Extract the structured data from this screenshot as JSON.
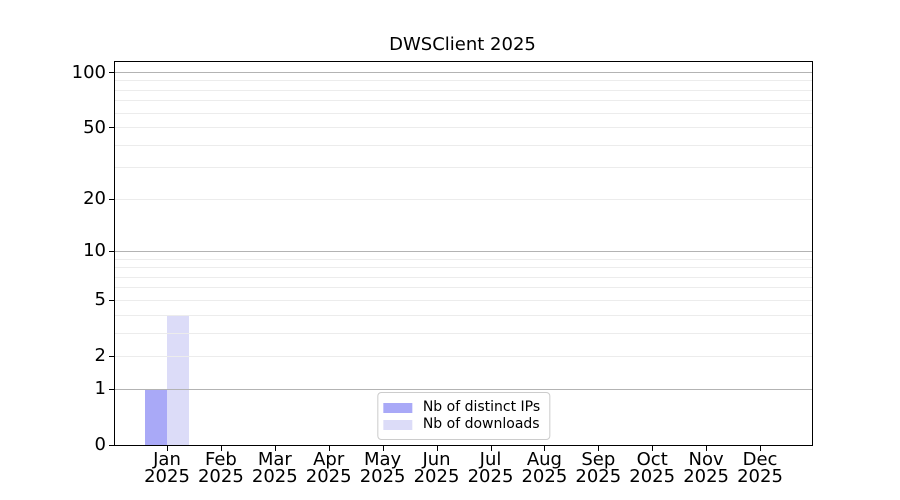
{
  "chart_data": {
    "type": "bar",
    "title": "DWSClient 2025",
    "categories": [
      "Jan",
      "Feb",
      "Mar",
      "Apr",
      "May",
      "Jun",
      "Jul",
      "Aug",
      "Sep",
      "Oct",
      "Nov",
      "Dec"
    ],
    "category_year": "2025",
    "series": [
      {
        "name": "Nb of distinct IPs",
        "color": "#a9a9f7",
        "values": [
          1,
          0,
          0,
          0,
          0,
          0,
          0,
          0,
          0,
          0,
          0,
          0
        ]
      },
      {
        "name": "Nb of downloads",
        "color": "#dcdcf8",
        "values": [
          4,
          0,
          0,
          0,
          0,
          0,
          0,
          0,
          0,
          0,
          0,
          0
        ]
      }
    ],
    "yscale": "log1p",
    "ylim": [
      0,
      100
    ],
    "ytick_labels": [
      0,
      1,
      2,
      5,
      10,
      20,
      50,
      100
    ],
    "major_grid_values": [
      1,
      10,
      100
    ],
    "minor_grid_values": [
      2,
      3,
      4,
      5,
      6,
      7,
      8,
      9,
      20,
      30,
      40,
      50,
      60,
      70,
      80,
      90
    ],
    "grid": true,
    "legend": {
      "position": "lower center"
    },
    "colors": {
      "major_grid": "#b3b3b3",
      "minor_grid": "#ececec",
      "spine": "#000000",
      "text": "#000000",
      "legend_border": "#cccccc",
      "background": "#ffffff"
    }
  }
}
